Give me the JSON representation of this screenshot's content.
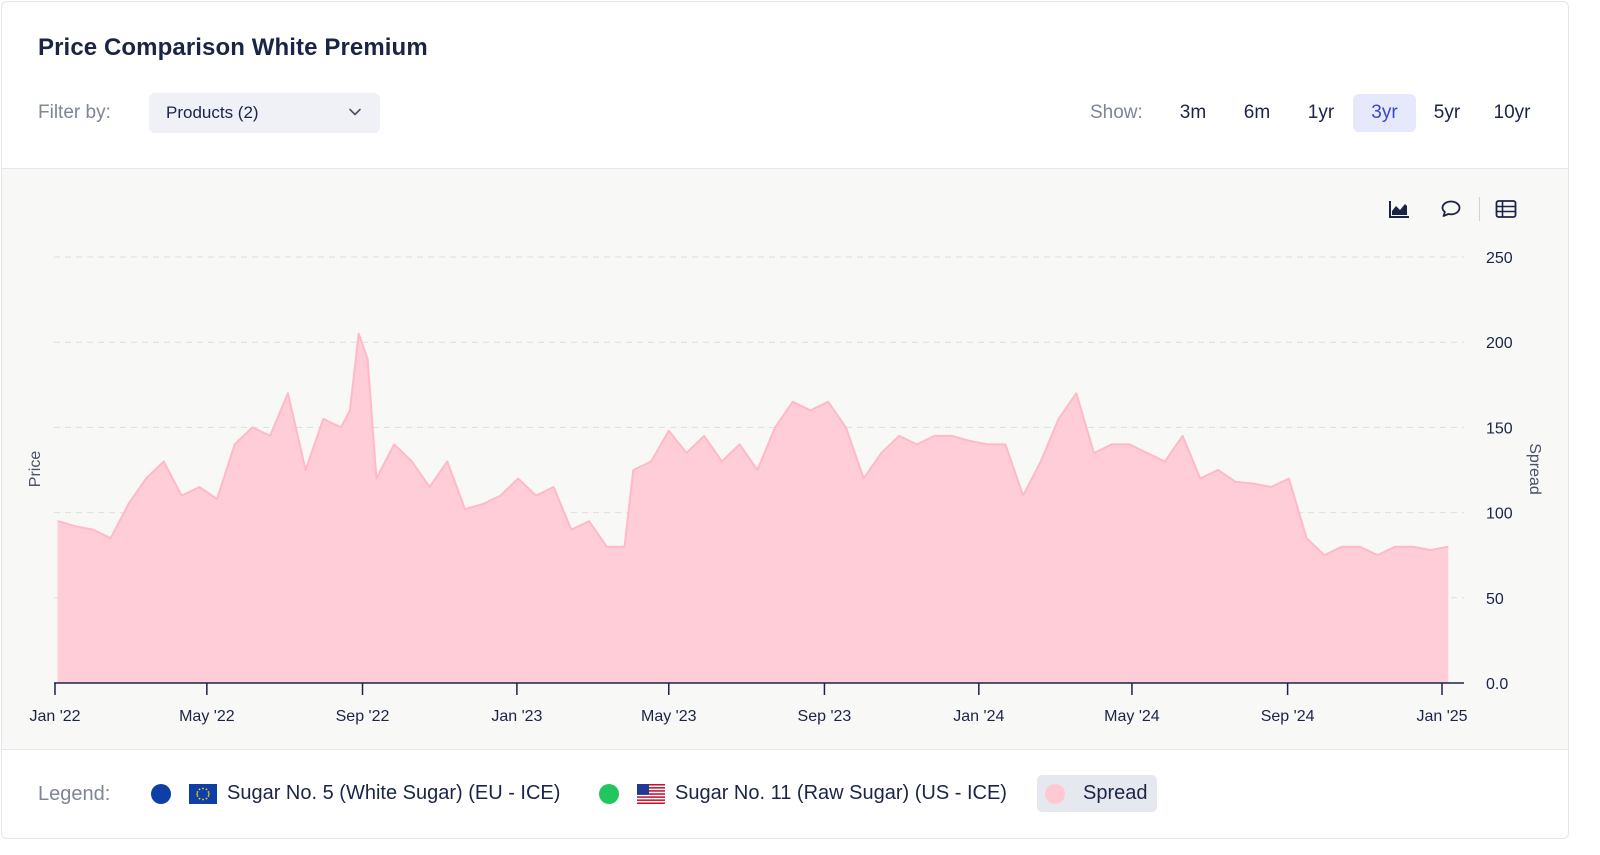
{
  "header": {
    "title": "Price Comparison White Premium",
    "filter_label": "Filter by:",
    "filter_value": "Products (2)",
    "show_label": "Show:",
    "ranges": [
      "3m",
      "6m",
      "1yr",
      "3yr",
      "5yr",
      "10yr"
    ],
    "active_range": "3yr"
  },
  "toolbar": {
    "icons": [
      "area-chart-icon",
      "comment-icon",
      "table-icon"
    ]
  },
  "legend": {
    "label": "Legend:",
    "items": [
      {
        "label": "Sugar No. 5 (White Sugar) (EU - ICE)",
        "color": "#0d3fa6",
        "flag": "eu-flag-icon"
      },
      {
        "label": "Sugar No. 11 (Raw Sugar) (US - ICE)",
        "color": "#22c55e",
        "flag": "us-flag-icon"
      },
      {
        "label": "Spread",
        "color": "#ffc9d4"
      }
    ]
  },
  "chart_data": {
    "type": "area",
    "ylabel_left": "Price",
    "ylabel_right": "Spread",
    "y_ticks": [
      "250",
      "200",
      "150",
      "100",
      "50",
      "0.0"
    ],
    "ylim": [
      0,
      250
    ],
    "x_ticks": [
      "Jan '22",
      "May '22",
      "Sep '22",
      "Jan '23",
      "May '23",
      "Sep '23",
      "Jan '24",
      "May '24",
      "Sep '24",
      "Jan '25"
    ],
    "grid": true,
    "fill_color": "#ffcdd7",
    "line_color": "#ffb9c7",
    "series": [
      {
        "name": "Spread",
        "x": [
          "2022-01-03",
          "2022-01-17",
          "2022-01-31",
          "2022-02-14",
          "2022-02-28",
          "2022-03-14",
          "2022-03-28",
          "2022-04-11",
          "2022-04-25",
          "2022-05-09",
          "2022-05-23",
          "2022-06-06",
          "2022-06-20",
          "2022-07-04",
          "2022-07-18",
          "2022-08-01",
          "2022-08-15",
          "2022-08-22",
          "2022-08-29",
          "2022-09-05",
          "2022-09-12",
          "2022-09-26",
          "2022-10-10",
          "2022-10-24",
          "2022-11-07",
          "2022-11-21",
          "2022-12-05",
          "2022-12-19",
          "2023-01-02",
          "2023-01-16",
          "2023-01-30",
          "2023-02-13",
          "2023-02-27",
          "2023-03-13",
          "2023-03-27",
          "2023-04-03",
          "2023-04-17",
          "2023-05-01",
          "2023-05-15",
          "2023-05-29",
          "2023-06-12",
          "2023-06-26",
          "2023-07-10",
          "2023-07-24",
          "2023-08-07",
          "2023-08-21",
          "2023-09-04",
          "2023-09-18",
          "2023-10-02",
          "2023-10-16",
          "2023-10-30",
          "2023-11-13",
          "2023-11-27",
          "2023-12-11",
          "2023-12-25",
          "2024-01-08",
          "2024-01-22",
          "2024-02-05",
          "2024-02-19",
          "2024-03-04",
          "2024-03-18",
          "2024-04-01",
          "2024-04-15",
          "2024-04-29",
          "2024-05-13",
          "2024-05-27",
          "2024-06-10",
          "2024-06-24",
          "2024-07-08",
          "2024-07-22",
          "2024-08-05",
          "2024-08-19",
          "2024-09-02",
          "2024-09-16",
          "2024-09-30",
          "2024-10-14",
          "2024-10-28",
          "2024-11-11",
          "2024-11-25",
          "2024-12-09",
          "2024-12-23",
          "2025-01-06"
        ],
        "values": [
          95,
          92,
          90,
          85,
          105,
          120,
          130,
          110,
          115,
          108,
          140,
          150,
          145,
          170,
          125,
          155,
          150,
          160,
          205,
          190,
          120,
          140,
          130,
          115,
          130,
          102,
          105,
          110,
          120,
          110,
          115,
          90,
          95,
          80,
          80,
          125,
          130,
          148,
          135,
          145,
          130,
          140,
          125,
          150,
          165,
          160,
          165,
          150,
          120,
          135,
          145,
          140,
          145,
          145,
          142,
          140,
          140,
          110,
          130,
          155,
          170,
          135,
          140,
          140,
          135,
          130,
          145,
          120,
          125,
          118,
          117,
          115,
          120,
          85,
          75,
          80,
          80,
          75,
          80,
          80,
          78,
          80
        ]
      }
    ]
  }
}
